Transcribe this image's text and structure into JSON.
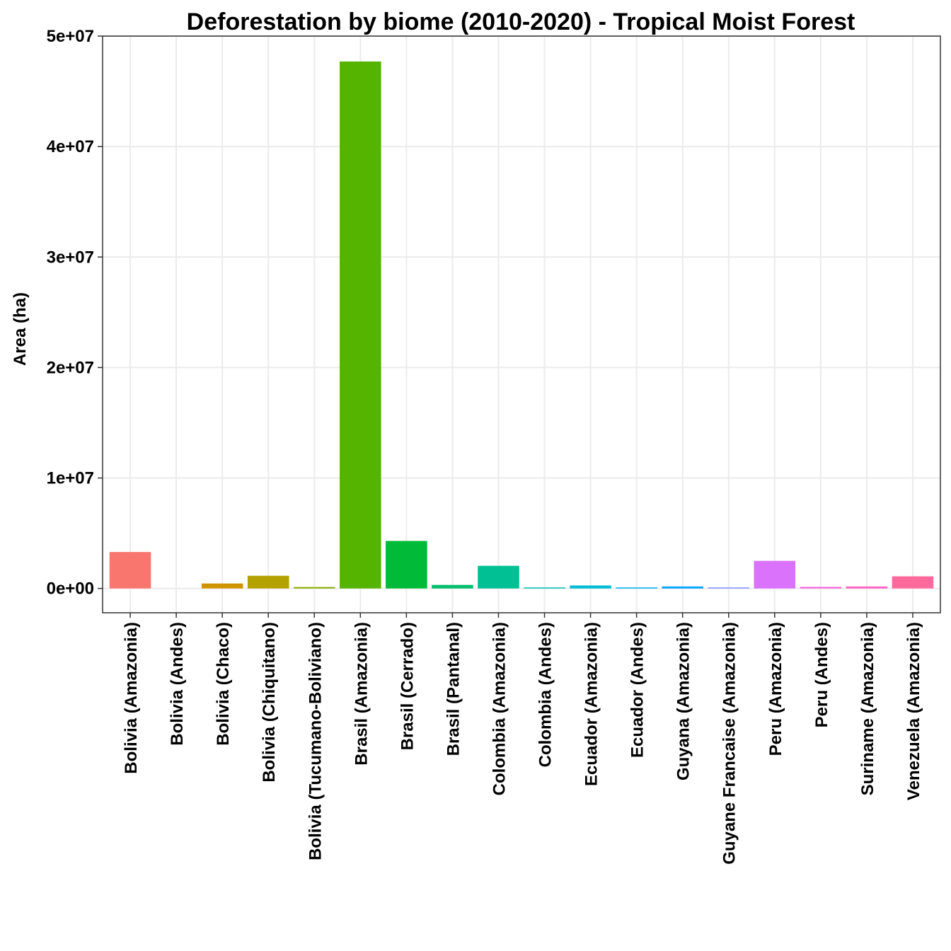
{
  "chart_data": {
    "type": "bar",
    "title": "Deforestation by biome (2010-2020) - Tropical Moist Forest",
    "xlabel": "",
    "ylabel": "Area (ha)",
    "ylim": [
      -2200000,
      50000000
    ],
    "yticks": [
      0,
      10000000,
      20000000,
      30000000,
      40000000,
      50000000
    ],
    "ytick_labels": [
      "0e+00",
      "1e+07",
      "2e+07",
      "3e+07",
      "4e+07",
      "5e+07"
    ],
    "grid": true,
    "legend": "none",
    "categories": [
      "Bolivia (Amazonia)",
      "Bolivia (Andes)",
      "Bolivia (Chaco)",
      "Bolivia (Chiquitano)",
      "Bolivia (Tucumano-Boliviano)",
      "Brasil (Amazonia)",
      "Brasil (Cerrado)",
      "Brasil (Pantanal)",
      "Colombia (Amazonia)",
      "Colombia (Andes)",
      "Ecuador (Amazonia)",
      "Ecuador (Andes)",
      "Guyana (Amazonia)",
      "Guyane Francaise (Amazonia)",
      "Peru (Amazonia)",
      "Peru (Andes)",
      "Suriname (Amazonia)",
      "Venezuela (Amazonia)"
    ],
    "values": [
      3300000,
      0,
      450000,
      1150000,
      130000,
      47700000,
      4300000,
      320000,
      2050000,
      60000,
      270000,
      60000,
      180000,
      50000,
      2500000,
      140000,
      180000,
      1100000
    ],
    "colors": [
      "#F8766D",
      "#E7851E",
      "#D09400",
      "#B2A100",
      "#8BAB00",
      "#55B400",
      "#00BA38",
      "#00BE6C",
      "#00C094",
      "#00BFB6",
      "#00BBD6",
      "#00B2EF",
      "#00A5FF",
      "#7F96FF",
      "#DB72FB",
      "#F564E3",
      "#FF61C3",
      "#FF699C"
    ]
  }
}
